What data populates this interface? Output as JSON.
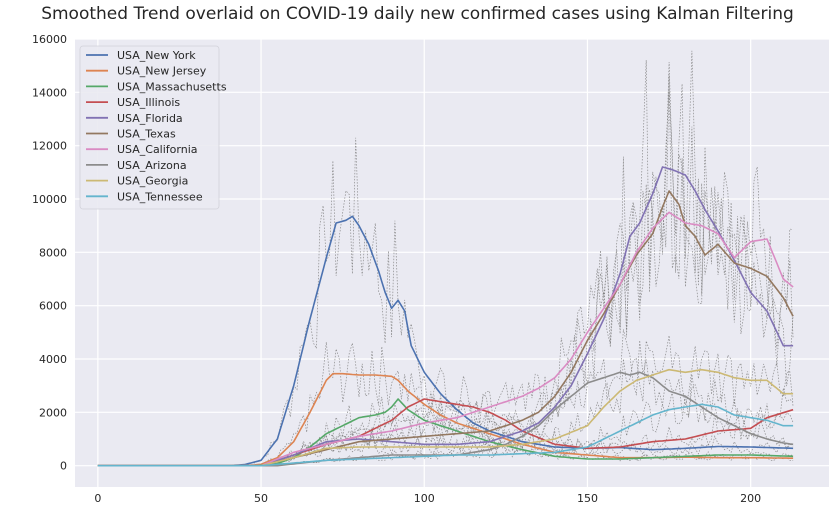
{
  "chart_data": {
    "type": "line",
    "title": "Smoothed Trend overlaid on COVID-19 daily new confirmed cases using Kalman Filtering",
    "xlabel": "",
    "ylabel": "",
    "xlim": [
      -7,
      224
    ],
    "ylim": [
      -800,
      16000
    ],
    "xticks": [
      0,
      50,
      100,
      150,
      200
    ],
    "yticks": [
      0,
      2000,
      4000,
      6000,
      8000,
      10000,
      12000,
      14000,
      16000
    ],
    "grid": true,
    "legend_position": "top-left",
    "background": "#EAEAF2",
    "raw_data_style": {
      "color": "#7a7a7a",
      "dash": "dotted"
    },
    "series": [
      {
        "name": "USA_New York",
        "color": "#4C72B0",
        "x": [
          0,
          40,
          45,
          50,
          55,
          60,
          65,
          70,
          73,
          76,
          78,
          80,
          83,
          86,
          88,
          90,
          92,
          94,
          96,
          100,
          105,
          110,
          115,
          120,
          125,
          130,
          140,
          150,
          160,
          170,
          180,
          190,
          200,
          213
        ],
        "y": [
          0,
          0,
          40,
          200,
          1000,
          3000,
          5500,
          7800,
          9100,
          9200,
          9350,
          9000,
          8300,
          7300,
          6500,
          5900,
          6200,
          5800,
          4500,
          3500,
          2700,
          2100,
          1600,
          1300,
          1100,
          900,
          700,
          650,
          680,
          600,
          650,
          720,
          700,
          650
        ]
      },
      {
        "name": "USA_New Jersey",
        "color": "#DD8452",
        "x": [
          0,
          45,
          50,
          55,
          60,
          65,
          70,
          72,
          75,
          80,
          85,
          90,
          92,
          95,
          100,
          105,
          110,
          120,
          130,
          140,
          150,
          160,
          170,
          180,
          190,
          200,
          213
        ],
        "y": [
          0,
          0,
          50,
          300,
          900,
          2000,
          3200,
          3450,
          3450,
          3400,
          3400,
          3350,
          3200,
          2800,
          2300,
          1900,
          1600,
          1200,
          800,
          500,
          400,
          300,
          300,
          320,
          300,
          300,
          280
        ]
      },
      {
        "name": "USA_Massachusetts",
        "color": "#55A868",
        "x": [
          0,
          48,
          55,
          60,
          65,
          70,
          75,
          80,
          85,
          88,
          90,
          92,
          95,
          100,
          105,
          110,
          115,
          120,
          130,
          140,
          150,
          160,
          170,
          180,
          190,
          200,
          213
        ],
        "y": [
          0,
          0,
          80,
          300,
          700,
          1200,
          1500,
          1800,
          1900,
          2000,
          2200,
          2500,
          2100,
          1700,
          1500,
          1300,
          1100,
          900,
          600,
          350,
          250,
          250,
          300,
          350,
          400,
          400,
          350
        ]
      },
      {
        "name": "USA_Illinois",
        "color": "#C44E52",
        "x": [
          0,
          50,
          60,
          70,
          80,
          90,
          95,
          100,
          105,
          110,
          115,
          120,
          125,
          130,
          140,
          150,
          160,
          170,
          180,
          190,
          200,
          205,
          213
        ],
        "y": [
          0,
          0,
          400,
          800,
          1100,
          1700,
          2200,
          2500,
          2400,
          2300,
          2200,
          2000,
          1700,
          1300,
          800,
          650,
          700,
          900,
          1000,
          1300,
          1400,
          1800,
          2100
        ]
      },
      {
        "name": "USA_Florida",
        "color": "#8172B3",
        "x": [
          0,
          50,
          60,
          70,
          80,
          90,
          100,
          110,
          120,
          125,
          130,
          135,
          140,
          145,
          150,
          155,
          160,
          163,
          166,
          170,
          173,
          176,
          180,
          183,
          186,
          190,
          195,
          200,
          205,
          210,
          213
        ],
        "y": [
          0,
          0,
          400,
          900,
          1000,
          900,
          800,
          800,
          900,
          1100,
          1300,
          1600,
          2200,
          3000,
          4200,
          5500,
          7200,
          8600,
          9100,
          10200,
          11200,
          11100,
          10900,
          10300,
          9600,
          8800,
          7700,
          6500,
          5800,
          4500,
          4500
        ]
      },
      {
        "name": "USA_Texas",
        "color": "#937860",
        "x": [
          0,
          50,
          60,
          70,
          80,
          90,
          100,
          110,
          120,
          125,
          130,
          135,
          140,
          145,
          150,
          155,
          160,
          165,
          170,
          173,
          175,
          178,
          180,
          183,
          186,
          190,
          195,
          200,
          205,
          210,
          213
        ],
        "y": [
          0,
          0,
          300,
          600,
          900,
          1000,
          1100,
          1200,
          1300,
          1500,
          1700,
          2000,
          2600,
          3500,
          4700,
          5700,
          6800,
          7900,
          8700,
          9700,
          10300,
          9800,
          9000,
          8600,
          7900,
          8300,
          7600,
          7400,
          7100,
          6300,
          5600
        ]
      },
      {
        "name": "USA_California",
        "color": "#DA8BC3",
        "x": [
          0,
          50,
          60,
          70,
          80,
          90,
          100,
          110,
          120,
          125,
          130,
          135,
          140,
          145,
          150,
          155,
          160,
          165,
          170,
          175,
          180,
          185,
          190,
          195,
          200,
          205,
          210,
          213
        ],
        "y": [
          0,
          0,
          500,
          800,
          1100,
          1300,
          1600,
          1800,
          2200,
          2400,
          2600,
          2900,
          3300,
          4000,
          5000,
          5900,
          6800,
          8000,
          8900,
          9500,
          9100,
          9000,
          8700,
          7800,
          8400,
          8500,
          7000,
          6700
        ]
      },
      {
        "name": "USA_Arizona",
        "color": "#8C8C8C",
        "x": [
          0,
          55,
          70,
          80,
          90,
          100,
          110,
          120,
          125,
          130,
          135,
          140,
          145,
          150,
          155,
          160,
          163,
          166,
          170,
          175,
          180,
          185,
          190,
          195,
          200,
          205,
          210,
          213
        ],
        "y": [
          0,
          0,
          200,
          300,
          400,
          400,
          400,
          600,
          800,
          1100,
          1500,
          2100,
          2600,
          3100,
          3300,
          3500,
          3400,
          3500,
          3300,
          2800,
          2600,
          2200,
          1800,
          1500,
          1200,
          1000,
          850,
          800
        ]
      },
      {
        "name": "USA_Georgia",
        "color": "#CCB974",
        "x": [
          0,
          50,
          60,
          70,
          80,
          90,
          100,
          110,
          120,
          130,
          140,
          150,
          155,
          160,
          165,
          170,
          175,
          180,
          185,
          190,
          195,
          200,
          205,
          210,
          213
        ],
        "y": [
          0,
          0,
          300,
          650,
          700,
          700,
          700,
          700,
          700,
          800,
          1000,
          1500,
          2200,
          2800,
          3200,
          3400,
          3600,
          3500,
          3600,
          3500,
          3300,
          3200,
          3200,
          2700,
          2700
        ]
      },
      {
        "name": "USA_Tennessee",
        "color": "#64B5CD",
        "x": [
          0,
          50,
          60,
          70,
          80,
          90,
          100,
          110,
          120,
          130,
          140,
          150,
          155,
          160,
          165,
          170,
          175,
          180,
          185,
          190,
          195,
          200,
          205,
          210,
          213
        ],
        "y": [
          0,
          0,
          100,
          200,
          250,
          300,
          350,
          400,
          400,
          450,
          500,
          700,
          1000,
          1300,
          1600,
          1900,
          2100,
          2200,
          2300,
          2200,
          1900,
          1800,
          1700,
          1500,
          1500
        ]
      }
    ]
  }
}
